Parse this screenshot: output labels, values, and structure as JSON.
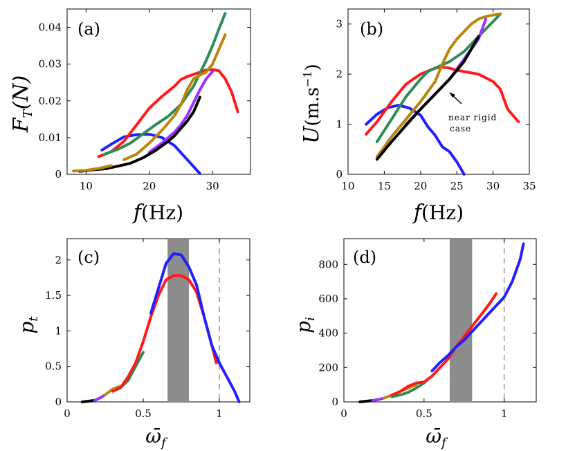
{
  "chart_data": [
    {
      "panel": "(a)",
      "type": "line",
      "xlabel": "f(Hz)",
      "ylabel": "F_T(N)",
      "xlim": [
        7,
        36
      ],
      "ylim": [
        0,
        0.045
      ],
      "xticks": [
        10,
        20,
        30
      ],
      "yticks": [
        0,
        0.01,
        0.02,
        0.03,
        0.04
      ],
      "xtick_labels": [
        "10",
        "20",
        "30"
      ],
      "ytick_labels": [
        "0",
        "0.01",
        "0.02",
        "0.03",
        "0.04"
      ],
      "grid": false,
      "series": [
        {
          "color": "#2020ff",
          "x": [
            12.5,
            14,
            16,
            18,
            20,
            22,
            24,
            26,
            28
          ],
          "y": [
            0.0066,
            0.0082,
            0.0102,
            0.0108,
            0.0109,
            0.01,
            0.0078,
            0.004,
            0.0002
          ]
        },
        {
          "color": "#ff1a1a",
          "x": [
            12,
            14,
            16,
            18,
            20,
            22,
            24,
            25,
            26,
            28,
            29,
            30,
            31,
            32,
            33,
            34
          ],
          "y": [
            0.0048,
            0.0062,
            0.009,
            0.0135,
            0.018,
            0.0212,
            0.024,
            0.0258,
            0.0266,
            0.0278,
            0.0284,
            0.0285,
            0.0282,
            0.026,
            0.0225,
            0.017
          ]
        },
        {
          "color": "#2e8b57",
          "x": [
            13,
            15,
            17,
            19,
            21,
            23,
            25,
            27,
            28,
            29,
            30,
            31,
            32
          ],
          "y": [
            0.0055,
            0.0068,
            0.0085,
            0.011,
            0.0135,
            0.0158,
            0.019,
            0.024,
            0.0275,
            0.031,
            0.035,
            0.0395,
            0.0438
          ]
        },
        {
          "color": "#b8860b",
          "x": [
            16,
            18,
            20,
            22,
            24,
            25,
            26,
            27,
            28,
            29,
            30,
            31,
            32
          ],
          "y": [
            0.004,
            0.0055,
            0.0085,
            0.012,
            0.016,
            0.019,
            0.023,
            0.026,
            0.027,
            0.0278,
            0.03,
            0.034,
            0.038
          ]
        },
        {
          "color": "#9b30ff",
          "x": [
            20,
            22,
            24,
            25,
            26,
            27,
            28,
            29,
            30
          ],
          "y": [
            0.006,
            0.0085,
            0.0115,
            0.0135,
            0.016,
            0.0195,
            0.023,
            0.026,
            0.028
          ]
        },
        {
          "color": "#000000",
          "x": [
            9,
            11,
            13,
            15,
            17,
            19,
            21,
            23,
            24,
            25,
            26,
            27,
            28
          ],
          "y": [
            0.0008,
            0.0012,
            0.0015,
            0.0022,
            0.003,
            0.0045,
            0.0065,
            0.009,
            0.0105,
            0.0125,
            0.0145,
            0.017,
            0.021
          ]
        },
        {
          "color": "#b8860b",
          "x": [
            8,
            10,
            12,
            14
          ],
          "y": [
            0.0009,
            0.0011,
            0.0016,
            0.0024
          ]
        }
      ]
    },
    {
      "panel": "(b)",
      "type": "line",
      "xlabel": "f(Hz)",
      "ylabel": "U(m.s^-1)",
      "xlim": [
        10,
        35
      ],
      "ylim": [
        0,
        3.3
      ],
      "xticks": [
        10,
        15,
        20,
        25,
        30,
        35
      ],
      "yticks": [
        0,
        1,
        2,
        3
      ],
      "xtick_labels": [
        "10",
        "15",
        "20",
        "25",
        "30",
        "35"
      ],
      "ytick_labels": [
        "0",
        "1",
        "2",
        "3"
      ],
      "grid": false,
      "annotation": {
        "text_line1": "near rigid",
        "text_line2": "case",
        "arrow_to": [
          23.2,
          1.75
        ],
        "text_at": [
          24.5,
          1.3
        ]
      },
      "series": [
        {
          "color": "#2020ff",
          "x": [
            12.5,
            14,
            15.5,
            17,
            18.5,
            20,
            21,
            22,
            23,
            24,
            25,
            26
          ],
          "y": [
            1.0,
            1.2,
            1.33,
            1.38,
            1.32,
            1.18,
            0.95,
            0.78,
            0.55,
            0.45,
            0.25,
            0.0
          ]
        },
        {
          "color": "#ff1a1a",
          "x": [
            12.5,
            14,
            16,
            18,
            20,
            22,
            23,
            24,
            25,
            26,
            28,
            30,
            31,
            32,
            33.5
          ],
          "y": [
            0.8,
            1.05,
            1.45,
            1.8,
            2.0,
            2.12,
            2.14,
            2.12,
            2.08,
            2.05,
            2.0,
            1.85,
            1.7,
            1.3,
            1.05
          ]
        },
        {
          "color": "#2e8b57",
          "x": [
            14,
            16,
            18,
            20,
            21,
            22,
            24,
            26,
            28,
            30,
            31
          ],
          "y": [
            0.65,
            1.1,
            1.55,
            1.9,
            2.05,
            2.12,
            2.25,
            2.45,
            2.75,
            3.05,
            3.2
          ]
        },
        {
          "color": "#b8860b",
          "x": [
            14,
            16,
            18,
            20,
            22,
            23,
            24,
            25,
            26,
            27,
            28,
            29,
            30,
            31
          ],
          "y": [
            0.35,
            0.75,
            1.1,
            1.45,
            1.85,
            2.2,
            2.5,
            2.7,
            2.85,
            3.0,
            3.1,
            3.15,
            3.18,
            3.2
          ]
        },
        {
          "color": "#9b30ff",
          "x": [
            18,
            20,
            22,
            24,
            26,
            28,
            29
          ],
          "y": [
            1.0,
            1.3,
            1.6,
            1.9,
            2.3,
            2.7,
            3.1
          ]
        },
        {
          "color": "#000000",
          "x": [
            14,
            16,
            18,
            20,
            22,
            24,
            26,
            27,
            28
          ],
          "y": [
            0.3,
            0.65,
            0.98,
            1.3,
            1.6,
            1.9,
            2.25,
            2.5,
            2.75
          ]
        }
      ]
    },
    {
      "panel": "(c)",
      "type": "line",
      "xlabel": "ω̄_f",
      "ylabel": "p_t",
      "xlim": [
        0,
        1.2
      ],
      "ylim": [
        0,
        2.3
      ],
      "xticks": [
        0,
        0.5,
        1
      ],
      "yticks": [
        0,
        0.5,
        1,
        1.5,
        2
      ],
      "xtick_labels": [
        "0",
        "0.5",
        "1"
      ],
      "ytick_labels": [
        "0",
        "0.5",
        "1",
        "1.5",
        "2"
      ],
      "grid": false,
      "shaded_band": {
        "x": [
          0.66,
          0.8
        ],
        "color": "#8c8c8c"
      },
      "vline": {
        "x": 1.0,
        "style": "dashed",
        "color": "#999999"
      },
      "series": [
        {
          "color": "#000000",
          "x": [
            0.1,
            0.14,
            0.18
          ],
          "y": [
            0.0,
            0.01,
            0.02
          ]
        },
        {
          "color": "#9b30ff",
          "x": [
            0.18,
            0.22,
            0.25
          ],
          "y": [
            0.02,
            0.06,
            0.1
          ]
        },
        {
          "color": "#b8860b",
          "x": [
            0.25,
            0.3,
            0.35
          ],
          "y": [
            0.1,
            0.18,
            0.22
          ]
        },
        {
          "color": "#2e8b57",
          "x": [
            0.3,
            0.35,
            0.4,
            0.45,
            0.5
          ],
          "y": [
            0.15,
            0.2,
            0.3,
            0.5,
            0.7
          ]
        },
        {
          "color": "#ff1a1a",
          "x": [
            0.3,
            0.35,
            0.4,
            0.45,
            0.5,
            0.55,
            0.6,
            0.65,
            0.7,
            0.75,
            0.8,
            0.85,
            0.9,
            0.95,
            0.98
          ],
          "y": [
            0.15,
            0.2,
            0.35,
            0.55,
            0.85,
            1.2,
            1.5,
            1.72,
            1.78,
            1.78,
            1.72,
            1.55,
            1.2,
            0.8,
            0.55
          ]
        },
        {
          "color": "#2020ff",
          "x": [
            0.55,
            0.6,
            0.65,
            0.7,
            0.75,
            0.8,
            0.85,
            0.9,
            0.95,
            1.0,
            1.05,
            1.1,
            1.13
          ],
          "y": [
            1.25,
            1.6,
            1.95,
            2.09,
            2.07,
            1.9,
            1.65,
            1.2,
            0.8,
            0.55,
            0.35,
            0.15,
            0.0
          ]
        }
      ]
    },
    {
      "panel": "(d)",
      "type": "line",
      "xlabel": "ω̄_f",
      "ylabel": "p_i",
      "xlim": [
        0,
        1.2
      ],
      "ylim": [
        0,
        950
      ],
      "xticks": [
        0,
        0.5,
        1
      ],
      "yticks": [
        0,
        200,
        400,
        600,
        800
      ],
      "xtick_labels": [
        "0",
        "0.5",
        "1"
      ],
      "ytick_labels": [
        "0",
        "200",
        "400",
        "600",
        "800"
      ],
      "grid": false,
      "shaded_band": {
        "x": [
          0.66,
          0.8
        ],
        "color": "#8c8c8c"
      },
      "vline": {
        "x": 1.0,
        "style": "dashed",
        "color": "#999999"
      },
      "series": [
        {
          "color": "#000000",
          "x": [
            0.1,
            0.14,
            0.18
          ],
          "y": [
            0,
            4,
            8
          ]
        },
        {
          "color": "#9b30ff",
          "x": [
            0.18,
            0.22,
            0.25
          ],
          "y": [
            8,
            15,
            22
          ]
        },
        {
          "color": "#b8860b",
          "x": [
            0.25,
            0.3,
            0.35,
            0.4,
            0.45
          ],
          "y": [
            22,
            40,
            60,
            80,
            100
          ]
        },
        {
          "color": "#2e8b57",
          "x": [
            0.3,
            0.35,
            0.4,
            0.45,
            0.5,
            0.52
          ],
          "y": [
            30,
            40,
            55,
            80,
            110,
            130
          ]
        },
        {
          "color": "#ff1a1a",
          "x": [
            0.3,
            0.35,
            0.4,
            0.45,
            0.5,
            0.55,
            0.6,
            0.65,
            0.7,
            0.75,
            0.8,
            0.85,
            0.9,
            0.95
          ],
          "y": [
            40,
            60,
            90,
            110,
            115,
            150,
            200,
            250,
            320,
            380,
            440,
            500,
            560,
            630
          ]
        },
        {
          "color": "#2020ff",
          "x": [
            0.55,
            0.6,
            0.65,
            0.7,
            0.75,
            0.8,
            0.85,
            0.9,
            0.95,
            1.0,
            1.05,
            1.1,
            1.12
          ],
          "y": [
            180,
            230,
            270,
            320,
            360,
            410,
            460,
            510,
            560,
            610,
            700,
            830,
            920
          ]
        }
      ]
    }
  ]
}
